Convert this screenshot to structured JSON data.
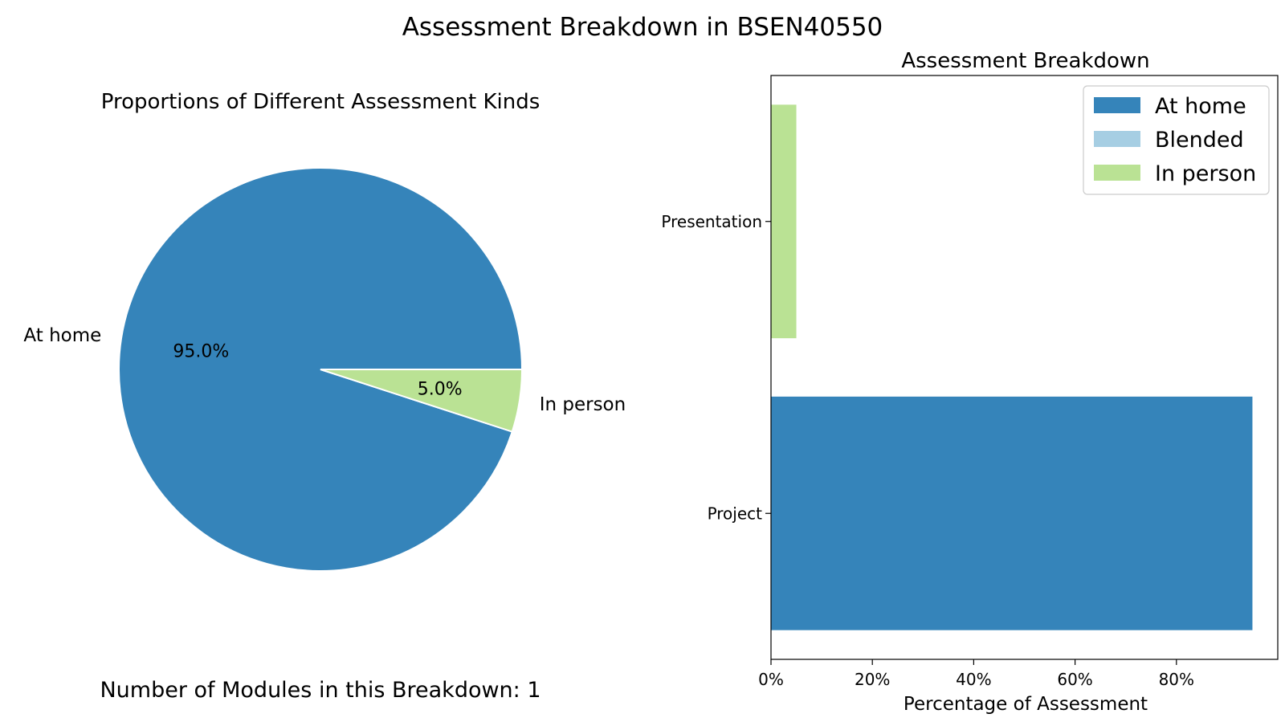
{
  "figure": {
    "title": "Assessment Breakdown in BSEN40550"
  },
  "chart_data": [
    {
      "type": "pie",
      "title": "Proportions of Different Assessment Kinds",
      "slices": [
        {
          "label": "At home",
          "value": 95.0,
          "pct_label": "95.0%",
          "color": "#3584ba"
        },
        {
          "label": "In person",
          "value": 5.0,
          "pct_label": "5.0%",
          "color": "#bae294"
        }
      ],
      "start_angle_deg": 0,
      "direction": "counterclockwise",
      "slice_edge_color": "#ffffff",
      "footnote": "Number of Modules in this Breakdown: 1"
    },
    {
      "type": "bar",
      "orientation": "horizontal",
      "stacked": true,
      "title": "Assessment Breakdown",
      "categories": [
        "Project",
        "Presentation"
      ],
      "series": [
        {
          "name": "At home",
          "values": [
            95,
            0
          ],
          "color": "#3584ba"
        },
        {
          "name": "Blended",
          "values": [
            0,
            0
          ],
          "color": "#a6cee3"
        },
        {
          "name": "In person",
          "values": [
            0,
            5
          ],
          "color": "#bae294"
        }
      ],
      "xlabel": "Percentage of Assessment",
      "ylabel": "",
      "xlim": [
        0,
        100
      ],
      "xticks": [
        {
          "value": 0,
          "label": "0%"
        },
        {
          "value": 20,
          "label": "20%"
        },
        {
          "value": 40,
          "label": "40%"
        },
        {
          "value": 60,
          "label": "60%"
        },
        {
          "value": 80,
          "label": "80%"
        }
      ],
      "grid": false,
      "legend": {
        "placement": "top-right"
      }
    }
  ]
}
